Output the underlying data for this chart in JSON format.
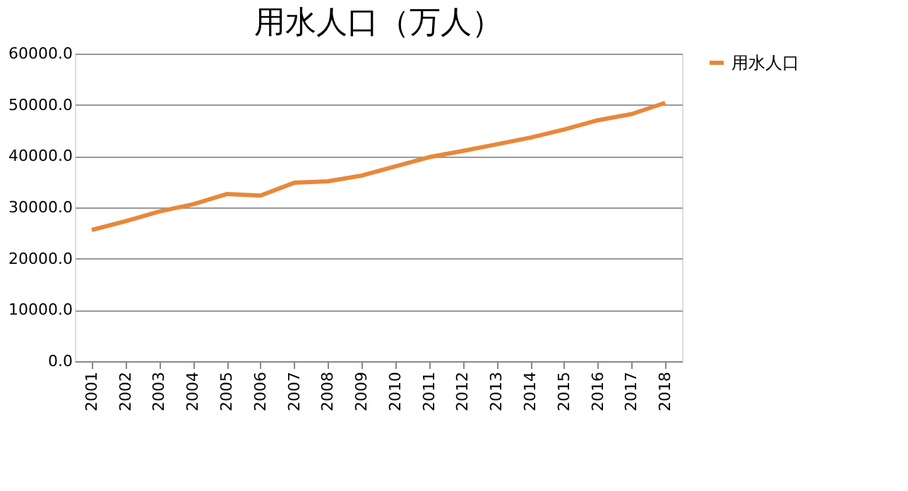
{
  "chart_data": {
    "type": "line",
    "title": "用水人口（万人）",
    "categories": [
      "2001",
      "2002",
      "2003",
      "2004",
      "2005",
      "2006",
      "2007",
      "2008",
      "2009",
      "2010",
      "2011",
      "2012",
      "2013",
      "2014",
      "2015",
      "2016",
      "2017",
      "2018"
    ],
    "series": [
      {
        "name": "用水人口",
        "color": "#e8883a",
        "values": [
          25600,
          27300,
          29200,
          30600,
          32600,
          32300,
          34800,
          35100,
          36200,
          38000,
          39800,
          41000,
          42300,
          43600,
          45200,
          47000,
          48200,
          50400
        ]
      }
    ],
    "ylim": [
      0,
      60000
    ],
    "yticks": [
      {
        "value": 0,
        "label": "0.0"
      },
      {
        "value": 10000,
        "label": "10000.0"
      },
      {
        "value": 20000,
        "label": "20000.0"
      },
      {
        "value": 30000,
        "label": "30000.0"
      },
      {
        "value": 40000,
        "label": "40000.0"
      },
      {
        "value": 50000,
        "label": "50000.0"
      },
      {
        "value": 60000,
        "label": "60000.0"
      }
    ],
    "grid": "y",
    "legend": "right",
    "marker": "none",
    "line_style": "solid"
  }
}
